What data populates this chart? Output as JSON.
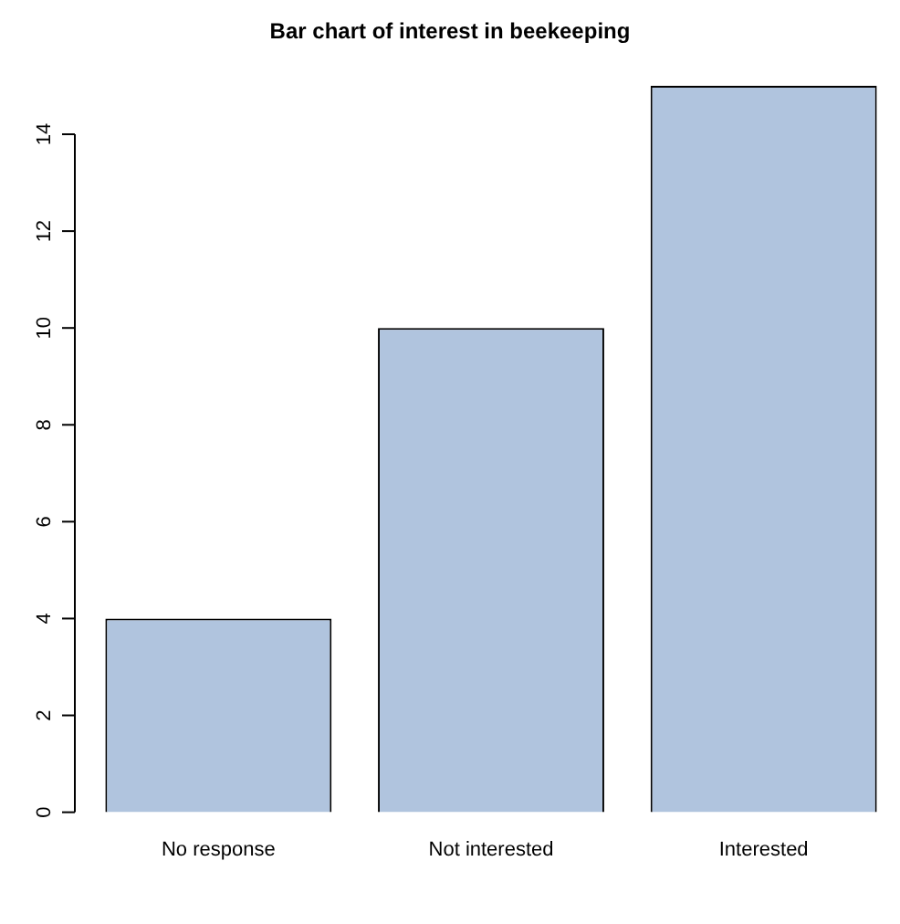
{
  "chart_data": {
    "type": "bar",
    "title": "Bar chart of interest in beekeeping",
    "categories": [
      "No response",
      "Not interested",
      "Interested"
    ],
    "values": [
      4,
      10,
      15
    ],
    "color": "#b0c4de",
    "ylim": [
      0,
      15
    ],
    "yticks": [
      0,
      2,
      4,
      6,
      8,
      10,
      12,
      14
    ],
    "grid": false,
    "legend": false
  }
}
